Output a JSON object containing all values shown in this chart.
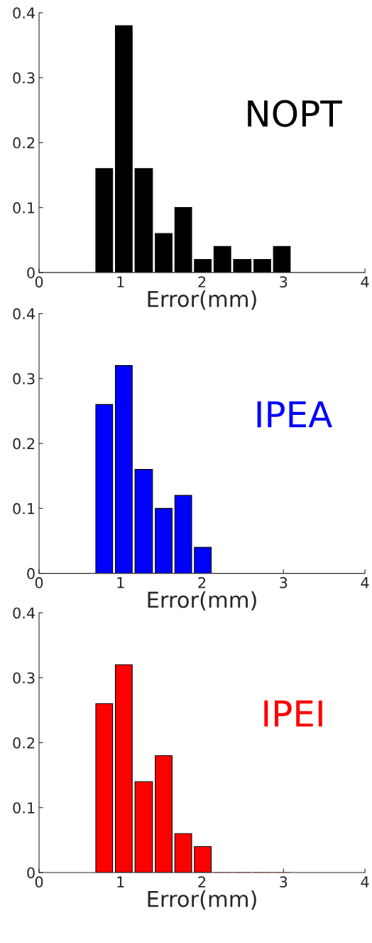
{
  "chart_data": [
    {
      "type": "histogram",
      "xlabel": "Error(mm)",
      "bins": [
        0.68,
        0.92,
        1.16,
        1.41,
        1.65,
        1.89,
        2.13,
        2.37,
        2.62,
        2.86,
        3.1
      ],
      "series": [
        {
          "name": "NOPT",
          "color": "#000000",
          "values": [
            0.16,
            0.38,
            0.16,
            0.06,
            0.1,
            0.02,
            0.04,
            0.02,
            0.02,
            0.04
          ]
        }
      ],
      "xlim": [
        0,
        4
      ],
      "ylim": [
        0,
        0.4
      ],
      "xticks": [
        0,
        1,
        2,
        3,
        4
      ],
      "yticks": [
        0,
        0.1,
        0.2,
        0.3,
        0.4
      ],
      "grid": false,
      "legend": false
    },
    {
      "type": "histogram",
      "xlabel": "Error(mm)",
      "bins": [
        0.68,
        0.92,
        1.16,
        1.41,
        1.65,
        1.89,
        2.13,
        2.37,
        2.62,
        2.86,
        3.1
      ],
      "series": [
        {
          "name": "IPEA",
          "color": "#0000ff",
          "values": [
            0.26,
            0.32,
            0.16,
            0.1,
            0.12,
            0.04,
            0,
            0,
            0,
            0
          ]
        }
      ],
      "xlim": [
        0,
        4
      ],
      "ylim": [
        0,
        0.4
      ],
      "xticks": [
        0,
        1,
        2,
        3,
        4
      ],
      "yticks": [
        0,
        0.1,
        0.2,
        0.3,
        0.4
      ],
      "grid": false,
      "legend": false
    },
    {
      "type": "histogram",
      "xlabel": "Error(mm)",
      "bins": [
        0.68,
        0.92,
        1.16,
        1.41,
        1.65,
        1.89,
        2.13,
        2.37,
        2.62,
        2.86,
        3.1
      ],
      "series": [
        {
          "name": "IPEI",
          "color": "#ff0000",
          "values": [
            0.26,
            0.32,
            0.14,
            0.18,
            0.06,
            0.04,
            0,
            0,
            0,
            0
          ]
        }
      ],
      "xlim": [
        0,
        4
      ],
      "ylim": [
        0,
        0.4
      ],
      "xticks": [
        0,
        1,
        2,
        3,
        4
      ],
      "yticks": [
        0,
        0.1,
        0.2,
        0.3,
        0.4
      ],
      "grid": false,
      "legend": false
    }
  ]
}
